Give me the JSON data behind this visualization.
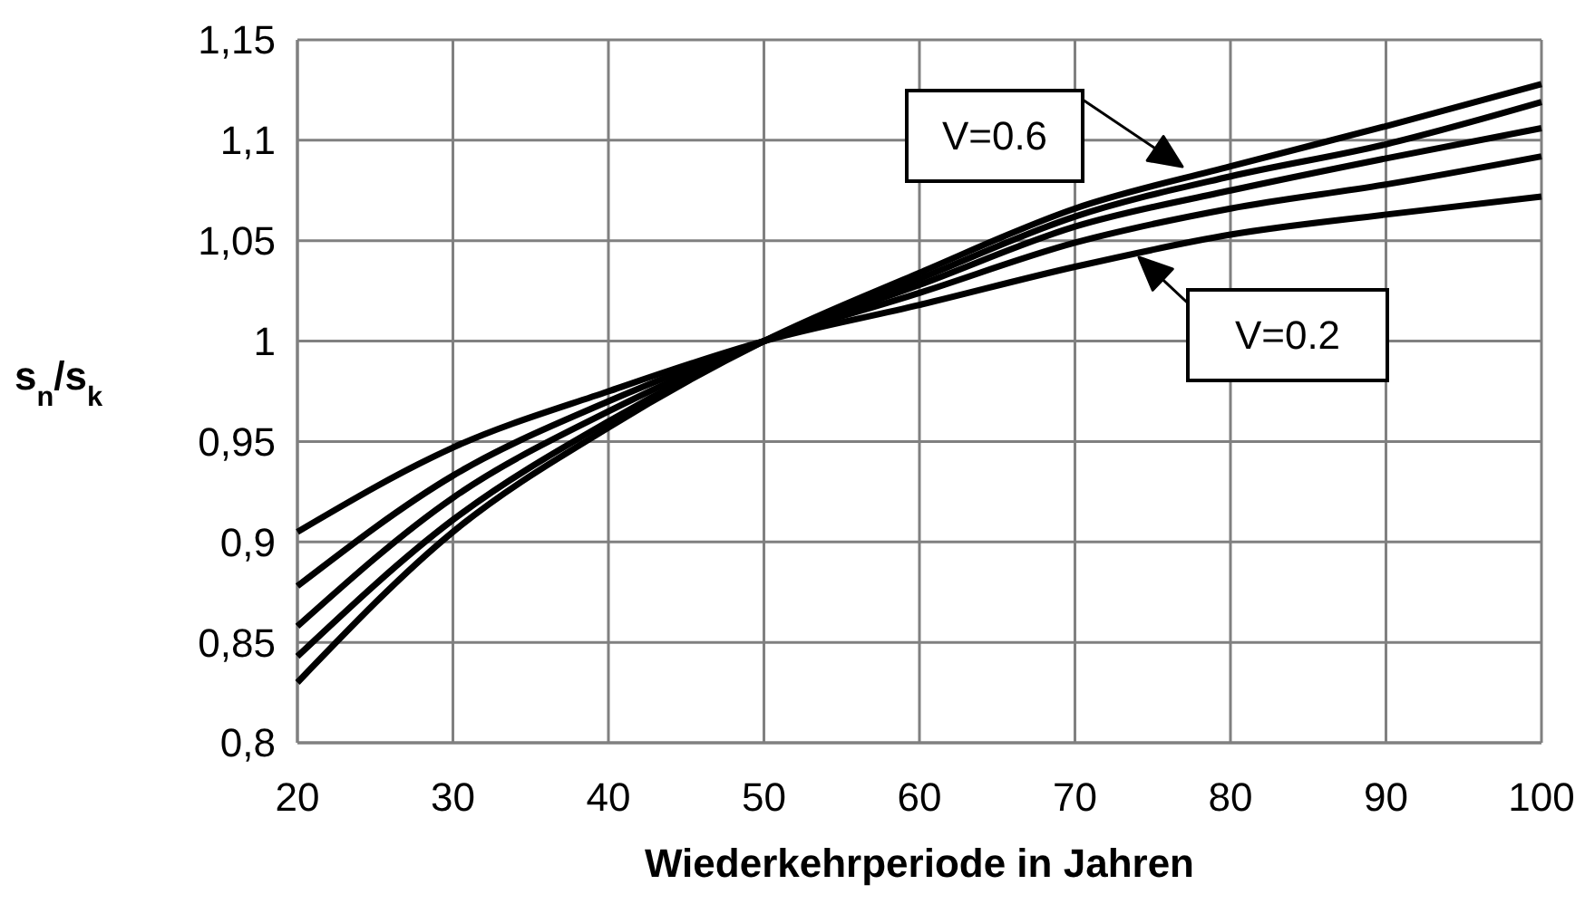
{
  "chart_data": {
    "type": "line",
    "xlabel": "Wiederkehrperiode in Jahren",
    "ylabel": "s$_{n}$/s$_{k}$",
    "x": [
      20,
      30,
      40,
      50,
      60,
      70,
      80,
      90,
      100
    ],
    "series": [
      {
        "color": "#000000",
        "values": [
          0.905,
          0.947,
          0.975,
          1,
          1.018,
          1.037,
          1.053,
          1.063,
          1.072
        ]
      },
      {
        "color": "#000000",
        "values": [
          0.878,
          0.933,
          0.97,
          1,
          1.024,
          1.049,
          1.066,
          1.078,
          1.092
        ]
      },
      {
        "color": "#000000",
        "values": [
          0.858,
          0.922,
          0.965,
          1,
          1.028,
          1.057,
          1.075,
          1.091,
          1.106
        ]
      },
      {
        "color": "#000000",
        "values": [
          0.843,
          0.911,
          0.96,
          1,
          1.031,
          1.062,
          1.082,
          1.098,
          1.119
        ]
      },
      {
        "color": "#000000",
        "values": [
          0.83,
          0.905,
          0.957,
          1,
          1.034,
          1.066,
          1.087,
          1.107,
          1.128
        ]
      }
    ],
    "xlim": [
      20,
      100
    ],
    "xticks": [
      20,
      30,
      40,
      50,
      60,
      70,
      80,
      90,
      100
    ],
    "ylim": [
      0.8,
      1.15
    ],
    "yticks": [
      {
        "value": 0.8,
        "label": "0,8"
      },
      {
        "value": 0.85,
        "label": "0,85"
      },
      {
        "value": 0.9,
        "label": "0,9"
      },
      {
        "value": 0.95,
        "label": "0,95"
      },
      1,
      {
        "value": 1.05,
        "label": "1,05"
      },
      {
        "value": 1.1,
        "label": "1,1"
      },
      {
        "value": 1.15,
        "label": "1,15"
      }
    ],
    "grid": true,
    "line_style": "solid",
    "marker": "none",
    "annotations": [
      "V=0.6",
      "V=0.2"
    ]
  }
}
